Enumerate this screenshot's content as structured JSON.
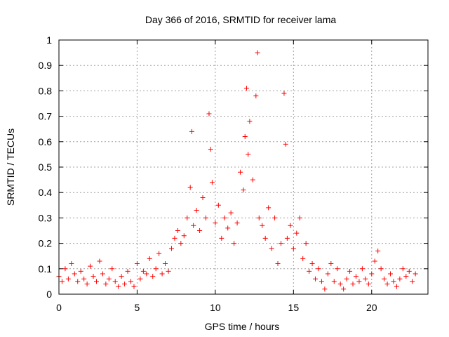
{
  "chart_data": {
    "type": "scatter",
    "title": "Day 366 of 2016, SRMTID for receiver lama",
    "xlabel": "GPS time / hours",
    "ylabel": "SRMTID / TECUs",
    "xlim": [
      0,
      23.6
    ],
    "ylim": [
      0,
      1
    ],
    "xticks": [
      0,
      5,
      10,
      15,
      20
    ],
    "xtick_labels": [
      "0",
      "5",
      "10",
      "15",
      "20"
    ],
    "yticks": [
      0,
      0.1,
      0.2,
      0.3,
      0.4,
      0.5,
      0.6,
      0.7,
      0.8,
      0.9,
      1
    ],
    "ytick_labels": [
      "0",
      "0.1",
      "0.2",
      "0.3",
      "0.4",
      "0.5",
      "0.6",
      "0.7",
      "0.8",
      "0.9",
      "1"
    ],
    "grid": true,
    "marker": "+",
    "series": [
      {
        "name": "SRMTID",
        "color": "#ff0000",
        "x": [
          0.0,
          0.2,
          0.4,
          0.6,
          0.8,
          1.0,
          1.2,
          1.4,
          1.6,
          1.8,
          2.0,
          2.2,
          2.4,
          2.6,
          2.8,
          3.0,
          3.2,
          3.4,
          3.6,
          3.8,
          4.0,
          4.2,
          4.4,
          4.6,
          4.8,
          5.0,
          5.2,
          5.4,
          5.6,
          5.8,
          6.0,
          6.2,
          6.4,
          6.6,
          6.8,
          7.0,
          7.2,
          7.4,
          7.6,
          7.8,
          8.0,
          8.2,
          8.4,
          8.5,
          8.6,
          8.8,
          9.0,
          9.2,
          9.4,
          9.6,
          9.7,
          9.8,
          10.0,
          10.2,
          10.4,
          10.6,
          10.8,
          11.0,
          11.2,
          11.4,
          11.6,
          11.8,
          11.9,
          12.0,
          12.1,
          12.2,
          12.4,
          12.6,
          12.7,
          12.8,
          13.0,
          13.2,
          13.4,
          13.6,
          13.8,
          14.0,
          14.2,
          14.4,
          14.5,
          14.6,
          14.8,
          15.0,
          15.2,
          15.4,
          15.6,
          15.8,
          16.0,
          16.2,
          16.4,
          16.6,
          16.8,
          17.0,
          17.2,
          17.4,
          17.6,
          17.8,
          18.0,
          18.2,
          18.4,
          18.6,
          18.8,
          19.0,
          19.2,
          19.4,
          19.6,
          19.8,
          20.0,
          20.2,
          20.4,
          20.6,
          20.8,
          21.0,
          21.2,
          21.4,
          21.6,
          21.8,
          22.0,
          22.2,
          22.4,
          22.6,
          22.8
        ],
        "y": [
          0.07,
          0.05,
          0.1,
          0.06,
          0.12,
          0.08,
          0.05,
          0.09,
          0.06,
          0.04,
          0.11,
          0.07,
          0.05,
          0.13,
          0.08,
          0.04,
          0.06,
          0.1,
          0.05,
          0.03,
          0.07,
          0.04,
          0.09,
          0.05,
          0.03,
          0.12,
          0.06,
          0.09,
          0.08,
          0.14,
          0.07,
          0.1,
          0.16,
          0.08,
          0.12,
          0.09,
          0.18,
          0.22,
          0.25,
          0.2,
          0.23,
          0.3,
          0.42,
          0.64,
          0.27,
          0.33,
          0.25,
          0.38,
          0.3,
          0.71,
          0.57,
          0.44,
          0.28,
          0.35,
          0.22,
          0.3,
          0.26,
          0.32,
          0.2,
          0.28,
          0.48,
          0.41,
          0.62,
          0.81,
          0.55,
          0.68,
          0.45,
          0.78,
          0.95,
          0.3,
          0.27,
          0.22,
          0.34,
          0.18,
          0.3,
          0.12,
          0.2,
          0.79,
          0.59,
          0.22,
          0.27,
          0.18,
          0.24,
          0.3,
          0.14,
          0.2,
          0.09,
          0.12,
          0.06,
          0.1,
          0.05,
          0.02,
          0.08,
          0.12,
          0.05,
          0.1,
          0.04,
          0.02,
          0.06,
          0.09,
          0.04,
          0.07,
          0.05,
          0.1,
          0.06,
          0.04,
          0.08,
          0.13,
          0.17,
          0.1,
          0.06,
          0.04,
          0.08,
          0.05,
          0.03,
          0.06,
          0.1,
          0.07,
          0.09,
          0.05,
          0.08
        ]
      }
    ]
  }
}
